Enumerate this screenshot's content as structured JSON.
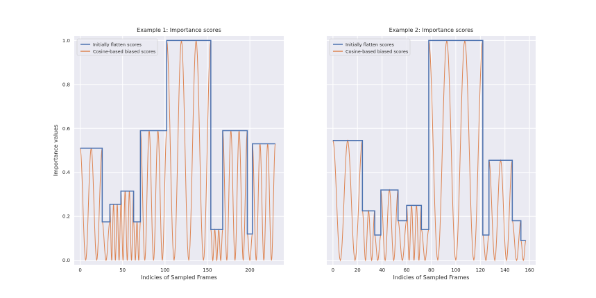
{
  "figure": {
    "panel_bg": "#eaeaf2",
    "grid_color": "#ffffff",
    "flat_color": "#4c72b0",
    "cos_color": "#dd8452"
  },
  "chart_data": [
    {
      "type": "line",
      "title": "Example 1: Importance scores",
      "xlabel": "Indicies of Sampled Frames",
      "ylabel": "Importance values",
      "xlim": [
        -7,
        240
      ],
      "ylim": [
        -0.02,
        1.02
      ],
      "xticks": [
        0,
        50,
        100,
        150,
        200
      ],
      "yticks": [
        0.0,
        0.2,
        0.4,
        0.6,
        0.8,
        1.0
      ],
      "ytick_labels": [
        "0.0",
        "0.2",
        "0.4",
        "0.6",
        "0.8",
        "1.0"
      ],
      "legend": [
        "Initially flatten scores",
        "Cosine-based biased scores"
      ],
      "series": [
        {
          "name": "Initially flatten scores",
          "segments": [
            {
              "x0": 0,
              "x1": 26,
              "y": 0.51
            },
            {
              "x0": 26,
              "x1": 35,
              "y": 0.175
            },
            {
              "x0": 35,
              "x1": 48,
              "y": 0.255
            },
            {
              "x0": 48,
              "x1": 63,
              "y": 0.315
            },
            {
              "x0": 63,
              "x1": 71,
              "y": 0.175
            },
            {
              "x0": 71,
              "x1": 102,
              "y": 0.59
            },
            {
              "x0": 102,
              "x1": 154,
              "y": 1.0
            },
            {
              "x0": 154,
              "x1": 168,
              "y": 0.14
            },
            {
              "x0": 168,
              "x1": 197,
              "y": 0.59
            },
            {
              "x0": 197,
              "x1": 203,
              "y": 0.12
            },
            {
              "x0": 203,
              "x1": 230,
              "y": 0.53
            }
          ]
        },
        {
          "name": "Cosine-based biased scores",
          "segments": [
            {
              "x0": 0,
              "x1": 26,
              "amp": 0.51,
              "n": 2
            },
            {
              "x0": 26,
              "x1": 35,
              "amp": 0.175,
              "n": 1
            },
            {
              "x0": 35,
              "x1": 48,
              "amp": 0.255,
              "n": 3
            },
            {
              "x0": 48,
              "x1": 63,
              "amp": 0.315,
              "n": 3
            },
            {
              "x0": 63,
              "x1": 71,
              "amp": 0.175,
              "n": 2
            },
            {
              "x0": 71,
              "x1": 102,
              "amp": 0.59,
              "n": 3
            },
            {
              "x0": 102,
              "x1": 154,
              "amp": 1.0,
              "n": 3
            },
            {
              "x0": 154,
              "x1": 168,
              "amp": 0.14,
              "n": 3
            },
            {
              "x0": 168,
              "x1": 197,
              "amp": 0.59,
              "n": 3
            },
            {
              "x0": 197,
              "x1": 203,
              "amp": 0.12,
              "n": 1
            },
            {
              "x0": 203,
              "x1": 230,
              "amp": 0.53,
              "n": 3
            }
          ]
        }
      ]
    },
    {
      "type": "line",
      "title": "Example 2: Importance scores",
      "xlabel": "Indicies of Sampled Frames",
      "ylabel": "",
      "xlim": [
        -5,
        165
      ],
      "ylim": [
        -0.02,
        1.02
      ],
      "xticks": [
        0,
        20,
        40,
        60,
        80,
        100,
        120,
        140,
        160
      ],
      "yticks": [
        0.0,
        0.2,
        0.4,
        0.6,
        0.8,
        1.0
      ],
      "ytick_labels": [],
      "legend": [
        "Initially flatten scores",
        "Cosine-based biased scores"
      ],
      "series": [
        {
          "name": "Initially flatten scores",
          "segments": [
            {
              "x0": 0,
              "x1": 24,
              "y": 0.545
            },
            {
              "x0": 24,
              "x1": 34,
              "y": 0.225
            },
            {
              "x0": 34,
              "x1": 39,
              "y": 0.115
            },
            {
              "x0": 39,
              "x1": 53,
              "y": 0.32
            },
            {
              "x0": 53,
              "x1": 60,
              "y": 0.18
            },
            {
              "x0": 60,
              "x1": 72,
              "y": 0.25
            },
            {
              "x0": 72,
              "x1": 78,
              "y": 0.14
            },
            {
              "x0": 78,
              "x1": 122,
              "y": 1.0
            },
            {
              "x0": 122,
              "x1": 127,
              "y": 0.115
            },
            {
              "x0": 127,
              "x1": 146,
              "y": 0.455
            },
            {
              "x0": 146,
              "x1": 153,
              "y": 0.18
            },
            {
              "x0": 153,
              "x1": 157,
              "y": 0.09
            }
          ]
        },
        {
          "name": "Cosine-based biased scores",
          "segments": [
            {
              "x0": 0,
              "x1": 24,
              "amp": 0.545,
              "n": 2
            },
            {
              "x0": 24,
              "x1": 34,
              "amp": 0.225,
              "n": 2
            },
            {
              "x0": 34,
              "x1": 39,
              "amp": 0.115,
              "n": 1
            },
            {
              "x0": 39,
              "x1": 53,
              "amp": 0.32,
              "n": 2
            },
            {
              "x0": 53,
              "x1": 60,
              "amp": 0.18,
              "n": 1
            },
            {
              "x0": 60,
              "x1": 72,
              "amp": 0.25,
              "n": 3
            },
            {
              "x0": 72,
              "x1": 78,
              "amp": 0.14,
              "n": 1
            },
            {
              "x0": 78,
              "x1": 122,
              "amp": 1.0,
              "n": 3
            },
            {
              "x0": 122,
              "x1": 127,
              "amp": 0.115,
              "n": 1
            },
            {
              "x0": 127,
              "x1": 146,
              "amp": 0.455,
              "n": 2
            },
            {
              "x0": 146,
              "x1": 153,
              "amp": 0.18,
              "n": 1
            },
            {
              "x0": 153,
              "x1": 157,
              "amp": 0.09,
              "n": 1
            }
          ]
        }
      ]
    }
  ]
}
